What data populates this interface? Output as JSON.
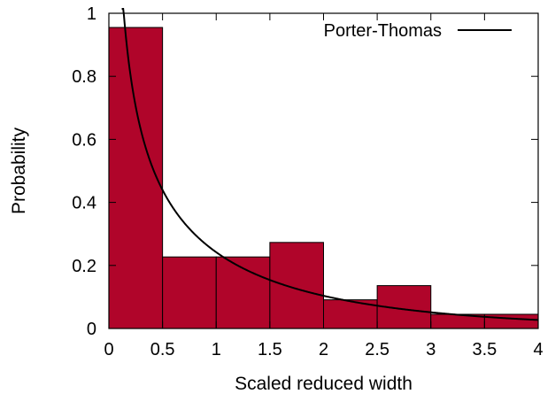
{
  "chart_data": {
    "type": "bar",
    "title": "",
    "xlabel": "Scaled reduced width",
    "ylabel": "Probability",
    "xlim": [
      0,
      4
    ],
    "ylim": [
      0,
      1
    ],
    "xticks": [
      "0",
      "0.5",
      "1",
      "1.5",
      "2",
      "2.5",
      "3",
      "3.5",
      "4"
    ],
    "yticks": [
      "0",
      "0.2",
      "0.4",
      "0.6",
      "0.8",
      "1"
    ],
    "bins": [
      {
        "x0": 0.0,
        "x1": 0.5,
        "value": 0.955
      },
      {
        "x0": 0.5,
        "x1": 1.0,
        "value": 0.227
      },
      {
        "x0": 1.0,
        "x1": 1.5,
        "value": 0.227
      },
      {
        "x0": 1.5,
        "x1": 2.0,
        "value": 0.273
      },
      {
        "x0": 2.0,
        "x1": 2.5,
        "value": 0.091
      },
      {
        "x0": 2.5,
        "x1": 3.0,
        "value": 0.136
      },
      {
        "x0": 3.0,
        "x1": 3.5,
        "value": 0.045
      },
      {
        "x0": 3.5,
        "x1": 4.0,
        "value": 0.045
      }
    ],
    "bar_color": "#b0052a",
    "bar_edge_color": "#000000",
    "series": [
      {
        "name": "Porter-Thomas",
        "type": "line",
        "function": "porter-thomas",
        "color": "#000000"
      }
    ],
    "legend_position": "top-right",
    "grid": false
  }
}
